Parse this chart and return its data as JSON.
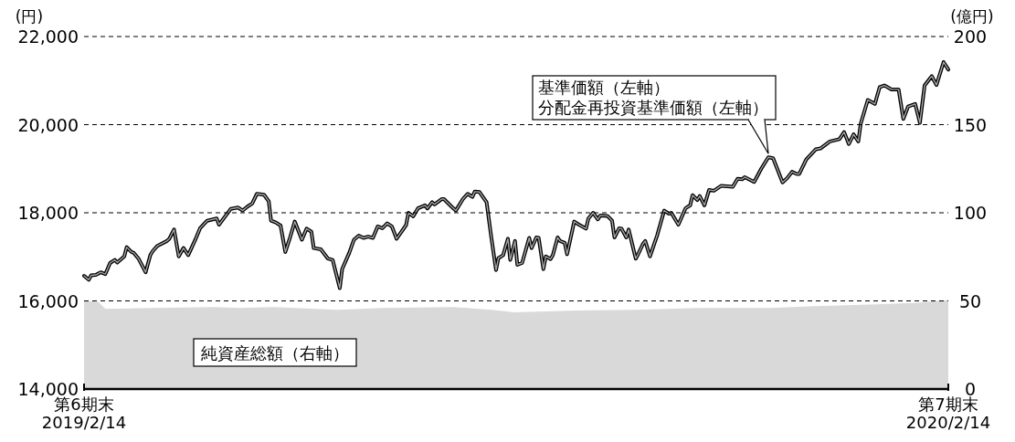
{
  "chart_data": {
    "type": "line",
    "ylabel": "(円)",
    "y2label": "(億円)",
    "xlim": [
      "2019-02-14",
      "2020-02-14"
    ],
    "xticks": [
      {
        "value": "2019-02-14",
        "label": "第6期末\n2019/2/14"
      },
      {
        "value": "2020-02-14",
        "label": "第7期末\n2020/2/14"
      }
    ],
    "ylim": [
      14000,
      22000
    ],
    "yticks": [
      {
        "value": 14000,
        "label": "14,000"
      },
      {
        "value": 16000,
        "label": "16,000"
      },
      {
        "value": 18000,
        "label": "18,000"
      },
      {
        "value": 20000,
        "label": "20,000"
      },
      {
        "value": 22000,
        "label": "22,000"
      }
    ],
    "y2lim": [
      0,
      200
    ],
    "y2ticks": [
      0,
      50,
      100,
      150,
      200
    ],
    "grid": "y",
    "x": [
      "2019-02-14",
      "2019-02-16",
      "2019-02-17",
      "2019-02-19",
      "2019-02-21",
      "2019-02-23",
      "2019-02-25",
      "2019-02-27",
      "2019-02-28",
      "2019-03-03",
      "2019-03-04",
      "2019-03-06",
      "2019-03-07",
      "2019-03-09",
      "2019-03-12",
      "2019-03-14",
      "2019-03-15",
      "2019-03-17",
      "2019-03-21",
      "2019-03-22",
      "2019-03-24",
      "2019-03-26",
      "2019-03-28",
      "2019-03-30",
      "2019-04-02",
      "2019-04-04",
      "2019-04-07",
      "2019-04-11",
      "2019-04-12",
      "2019-04-17",
      "2019-04-20",
      "2019-04-22",
      "2019-04-24",
      "2019-04-26",
      "2019-04-28",
      "2019-05-01",
      "2019-05-03",
      "2019-05-04",
      "2019-05-06",
      "2019-05-08",
      "2019-05-10",
      "2019-05-12",
      "2019-05-14",
      "2019-05-17",
      "2019-05-19",
      "2019-05-21",
      "2019-05-22",
      "2019-05-25",
      "2019-05-28",
      "2019-05-30",
      "2019-06-02",
      "2019-06-03",
      "2019-06-06",
      "2019-06-08",
      "2019-06-10",
      "2019-06-12",
      "2019-06-14",
      "2019-06-16",
      "2019-06-18",
      "2019-06-20",
      "2019-06-22",
      "2019-06-24",
      "2019-06-26",
      "2019-06-30",
      "2019-07-01",
      "2019-07-03",
      "2019-07-05",
      "2019-07-08",
      "2019-07-09",
      "2019-07-11",
      "2019-07-12",
      "2019-07-15",
      "2019-07-16",
      "2019-07-19",
      "2019-07-21",
      "2019-07-24",
      "2019-07-26",
      "2019-07-28",
      "2019-07-29",
      "2019-07-31",
      "2019-08-03",
      "2019-08-05",
      "2019-08-07",
      "2019-08-08",
      "2019-08-10",
      "2019-08-12",
      "2019-08-13",
      "2019-08-15",
      "2019-08-16",
      "2019-08-18",
      "2019-08-21",
      "2019-08-22",
      "2019-08-24",
      "2019-08-25",
      "2019-08-27",
      "2019-08-28",
      "2019-08-30",
      "2019-08-31",
      "2019-09-02",
      "2019-09-03",
      "2019-09-05",
      "2019-09-06",
      "2019-09-09",
      "2019-09-11",
      "2019-09-14",
      "2019-09-15",
      "2019-09-17",
      "2019-09-19",
      "2019-09-20",
      "2019-09-23",
      "2019-09-25",
      "2019-09-26",
      "2019-09-28",
      "2019-09-29",
      "2019-10-01",
      "2019-10-02",
      "2019-10-05",
      "2019-10-06",
      "2019-10-08",
      "2019-10-09",
      "2019-10-11",
      "2019-10-14",
      "2019-10-17",
      "2019-10-19",
      "2019-10-20",
      "2019-10-23",
      "2019-10-26",
      "2019-10-28",
      "2019-10-29",
      "2019-10-31",
      "2019-11-01",
      "2019-11-03",
      "2019-11-05",
      "2019-11-07",
      "2019-11-10",
      "2019-11-15",
      "2019-11-17",
      "2019-11-19",
      "2019-11-20",
      "2019-11-24",
      "2019-11-27",
      "2019-11-30",
      "2019-12-02",
      "2019-12-06",
      "2019-12-08",
      "2019-12-10",
      "2019-12-12",
      "2019-12-13",
      "2019-12-16",
      "2019-12-20",
      "2019-12-22",
      "2019-12-26",
      "2019-12-30",
      "2020-01-01",
      "2020-01-03",
      "2020-01-05",
      "2020-01-07",
      "2020-01-08",
      "2020-01-11",
      "2020-01-14",
      "2020-01-16",
      "2020-01-18",
      "2020-01-21",
      "2020-01-24",
      "2020-01-26",
      "2020-01-28",
      "2020-01-31",
      "2020-02-02",
      "2020-02-04",
      "2020-02-07",
      "2020-02-09",
      "2020-02-12",
      "2020-02-14"
    ],
    "series": [
      {
        "name": "純資産総額（右軸）",
        "type": "area",
        "axis": "y2",
        "color": "#d9d9d9",
        "x": [
          "2019-02-14",
          "2019-02-20",
          "2019-02-23",
          "2019-03-15",
          "2019-04-10",
          "2019-04-20",
          "2019-05-05",
          "2019-06-01",
          "2019-06-20",
          "2019-07-20",
          "2019-08-05",
          "2019-08-15",
          "2019-09-10",
          "2019-10-05",
          "2019-11-01",
          "2019-12-01",
          "2019-12-20",
          "2020-01-15",
          "2020-02-01",
          "2020-02-14"
        ],
        "values": [
          50,
          49.5,
          45.5,
          46,
          46.5,
          46,
          46.5,
          45,
          46,
          46.5,
          45,
          43.5,
          44.5,
          45,
          46,
          46,
          47,
          48,
          49,
          50.5
        ]
      },
      {
        "name": "基準価額（左軸）",
        "color": "#000000",
        "values": [
          16570,
          16480,
          16580,
          16590,
          16650,
          16610,
          16860,
          16930,
          16870,
          17010,
          17220,
          17110,
          17090,
          16960,
          16650,
          17040,
          17130,
          17250,
          17360,
          17410,
          17620,
          17010,
          17200,
          17040,
          17390,
          17650,
          17820,
          17870,
          17730,
          18090,
          18120,
          18050,
          18140,
          18210,
          18430,
          18410,
          18260,
          17820,
          17780,
          17710,
          17110,
          17440,
          17800,
          17390,
          17640,
          17570,
          17200,
          17170,
          16960,
          16930,
          16290,
          16720,
          17090,
          17390,
          17480,
          17430,
          17460,
          17430,
          17690,
          17650,
          17760,
          17690,
          17410,
          17720,
          18000,
          17920,
          18100,
          18170,
          18100,
          18240,
          18190,
          18310,
          18310,
          18150,
          18050,
          18310,
          18430,
          18360,
          18480,
          18470,
          18240,
          17440,
          16700,
          16970,
          17040,
          17410,
          16930,
          17360,
          16820,
          16860,
          17430,
          17200,
          17440,
          17430,
          16720,
          17010,
          16950,
          17040,
          17440,
          17360,
          17320,
          17060,
          17800,
          17730,
          17640,
          17870,
          18000,
          17850,
          17940,
          17930,
          17820,
          17440,
          17650,
          17640,
          17440,
          17620,
          16960,
          17060,
          17290,
          17360,
          17010,
          17480,
          18050,
          17980,
          18000,
          17730,
          18100,
          18170,
          18400,
          18290,
          18380,
          18170,
          18520,
          18500,
          18610,
          18590,
          18770,
          18760,
          18810,
          18700,
          19000,
          19260,
          19240,
          18690,
          18790,
          18930,
          18880,
          18880,
          19210,
          19440,
          19460,
          19620,
          19670,
          19830,
          19560,
          19780,
          19620,
          20020,
          20560,
          20470,
          20850,
          20890,
          20800,
          20800,
          20130,
          20410,
          20470,
          20040,
          20890,
          21100,
          20900,
          21420,
          21250
        ]
      },
      {
        "name": "分配金再投資基準価額（左軸）",
        "color": "#a6a6a6",
        "values": [
          16570,
          16480,
          16580,
          16590,
          16650,
          16610,
          16860,
          16930,
          16870,
          17010,
          17220,
          17110,
          17090,
          16960,
          16650,
          17040,
          17130,
          17250,
          17360,
          17410,
          17620,
          17010,
          17200,
          17040,
          17390,
          17650,
          17820,
          17870,
          17730,
          18090,
          18120,
          18050,
          18140,
          18210,
          18430,
          18410,
          18260,
          17820,
          17780,
          17710,
          17110,
          17440,
          17800,
          17390,
          17640,
          17570,
          17200,
          17170,
          16960,
          16930,
          16290,
          16720,
          17090,
          17390,
          17480,
          17430,
          17460,
          17430,
          17690,
          17650,
          17760,
          17690,
          17410,
          17720,
          18000,
          17920,
          18100,
          18170,
          18100,
          18240,
          18190,
          18310,
          18310,
          18150,
          18050,
          18310,
          18430,
          18360,
          18480,
          18470,
          18240,
          17440,
          16700,
          16970,
          17040,
          17410,
          16930,
          17360,
          16820,
          16860,
          17430,
          17200,
          17440,
          17430,
          16720,
          17010,
          16950,
          17040,
          17440,
          17360,
          17320,
          17060,
          17800,
          17730,
          17640,
          17870,
          18000,
          17850,
          17940,
          17930,
          17820,
          17440,
          17650,
          17640,
          17440,
          17620,
          16960,
          17060,
          17290,
          17360,
          17010,
          17480,
          18050,
          17980,
          18000,
          17730,
          18100,
          18170,
          18400,
          18290,
          18380,
          18170,
          18520,
          18500,
          18610,
          18590,
          18770,
          18760,
          18810,
          18700,
          19000,
          19260,
          19240,
          18690,
          18790,
          18930,
          18880,
          18880,
          19210,
          19440,
          19460,
          19620,
          19670,
          19830,
          19560,
          19780,
          19620,
          20020,
          20560,
          20470,
          20850,
          20890,
          20800,
          20800,
          20130,
          20410,
          20470,
          20040,
          20890,
          21100,
          20900,
          21420,
          21250
        ]
      }
    ]
  }
}
